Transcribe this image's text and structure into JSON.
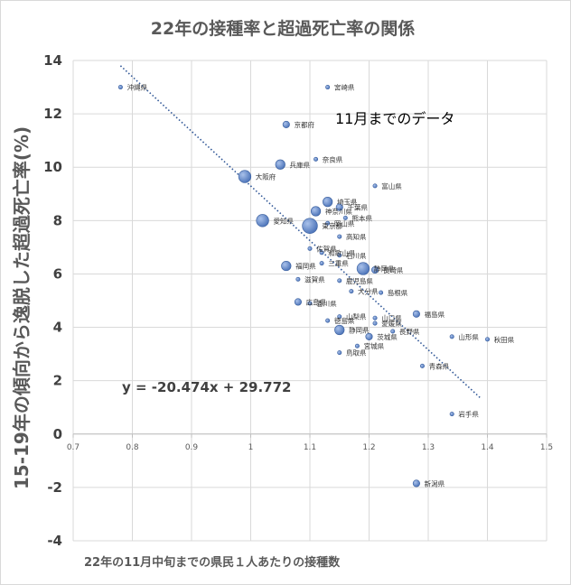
{
  "chart_data": {
    "type": "scatter",
    "title": "22年の接種率と超過死亡率の関係",
    "xlabel": "22年の11月中旬までの県民１人あたりの接種数",
    "ylabel": "15-19年の傾向から逸脱した超過死亡率(%)",
    "annotation": "11月までのデータ",
    "equation": "y = -20.474x + 29.772",
    "xlim": [
      0.7,
      1.5
    ],
    "ylim": [
      -4,
      14
    ],
    "xticks": [
      "0.7",
      "0.8",
      "0.9",
      "1",
      "1.1",
      "1.2",
      "1.3",
      "1.4",
      "1.5"
    ],
    "yticks": [
      "-4",
      "-2",
      "0",
      "2",
      "4",
      "6",
      "8",
      "10",
      "12",
      "14"
    ],
    "grid": true,
    "trendline": {
      "slope": -20.474,
      "intercept": 29.772,
      "x_range": [
        0.78,
        1.39
      ],
      "style": "dotted"
    },
    "marker_color": "#4a72b8",
    "trend_color": "#2e5596",
    "points": [
      {
        "x": 0.78,
        "y": 13.0,
        "size": 1,
        "label": "沖縄県"
      },
      {
        "x": 1.13,
        "y": 13.0,
        "size": 1,
        "label": "宮崎県"
      },
      {
        "x": 1.06,
        "y": 11.6,
        "size": 2,
        "label": "京都府"
      },
      {
        "x": 1.11,
        "y": 10.3,
        "size": 1,
        "label": "奈良県"
      },
      {
        "x": 1.05,
        "y": 10.1,
        "size": 3,
        "label": "兵庫県"
      },
      {
        "x": 0.99,
        "y": 9.65,
        "size": 4,
        "label": "大阪府"
      },
      {
        "x": 1.21,
        "y": 9.3,
        "size": 1,
        "label": "富山県"
      },
      {
        "x": 1.13,
        "y": 8.7,
        "size": 3,
        "label": "埼玉県"
      },
      {
        "x": 1.15,
        "y": 8.5,
        "size": 2,
        "label": "千葉県"
      },
      {
        "x": 1.11,
        "y": 8.35,
        "size": 3,
        "label": "神奈川県"
      },
      {
        "x": 1.16,
        "y": 8.1,
        "size": 1,
        "label": "熊本県"
      },
      {
        "x": 1.02,
        "y": 8.0,
        "size": 4,
        "label": "愛知県"
      },
      {
        "x": 1.1,
        "y": 7.8,
        "size": 5,
        "label": "東京都"
      },
      {
        "x": 1.13,
        "y": 7.9,
        "size": 1,
        "label": "岡山県"
      },
      {
        "x": 1.15,
        "y": 7.4,
        "size": 1,
        "label": "高知県"
      },
      {
        "x": 1.1,
        "y": 6.95,
        "size": 1,
        "label": "佐賀県"
      },
      {
        "x": 1.12,
        "y": 6.8,
        "size": 1,
        "label": "和歌山県"
      },
      {
        "x": 1.15,
        "y": 6.7,
        "size": 1,
        "label": "石川県"
      },
      {
        "x": 1.12,
        "y": 6.4,
        "size": 1,
        "label": "三重県"
      },
      {
        "x": 1.06,
        "y": 6.3,
        "size": 3,
        "label": "福岡県"
      },
      {
        "x": 1.19,
        "y": 6.2,
        "size": 4,
        "label": "静岡県"
      },
      {
        "x": 1.21,
        "y": 6.15,
        "size": 2,
        "label": "長崎県"
      },
      {
        "x": 1.08,
        "y": 5.8,
        "size": 1,
        "label": "滋賀県"
      },
      {
        "x": 1.15,
        "y": 5.75,
        "size": 1,
        "label": "鹿児島県"
      },
      {
        "x": 1.17,
        "y": 5.35,
        "size": 1,
        "label": "大分県"
      },
      {
        "x": 1.22,
        "y": 5.3,
        "size": 1,
        "label": "島根県"
      },
      {
        "x": 1.08,
        "y": 4.95,
        "size": 2,
        "label": "広島県"
      },
      {
        "x": 1.1,
        "y": 4.9,
        "size": 1,
        "label": "香川県"
      },
      {
        "x": 1.15,
        "y": 4.4,
        "size": 1,
        "label": "山梨県"
      },
      {
        "x": 1.21,
        "y": 4.35,
        "size": 1,
        "label": "山口県"
      },
      {
        "x": 1.28,
        "y": 4.5,
        "size": 2,
        "label": "福島県"
      },
      {
        "x": 1.13,
        "y": 4.25,
        "size": 1,
        "label": "徳島県"
      },
      {
        "x": 1.21,
        "y": 4.15,
        "size": 1,
        "label": "愛媛県"
      },
      {
        "x": 1.15,
        "y": 3.9,
        "size": 3,
        "label": "静岡県"
      },
      {
        "x": 1.24,
        "y": 3.85,
        "size": 1,
        "label": "長野県"
      },
      {
        "x": 1.2,
        "y": 3.65,
        "size": 2,
        "label": "茨城県"
      },
      {
        "x": 1.34,
        "y": 3.65,
        "size": 1,
        "label": "山形県"
      },
      {
        "x": 1.4,
        "y": 3.55,
        "size": 1,
        "label": "秋田県"
      },
      {
        "x": 1.18,
        "y": 3.3,
        "size": 1,
        "label": "宮城県"
      },
      {
        "x": 1.15,
        "y": 3.05,
        "size": 1,
        "label": "鳥取県"
      },
      {
        "x": 1.29,
        "y": 2.55,
        "size": 1,
        "label": "青森県"
      },
      {
        "x": 1.34,
        "y": 0.75,
        "size": 1,
        "label": "岩手県"
      },
      {
        "x": 1.28,
        "y": -1.85,
        "size": 2,
        "label": "新潟県"
      }
    ]
  }
}
